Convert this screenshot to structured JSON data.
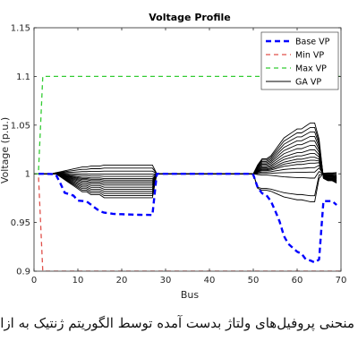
{
  "chart_data": {
    "type": "line",
    "title": "Voltage Profile",
    "xlabel": "Bus",
    "ylabel": "Voltage (p.u.)",
    "xlim": [
      0,
      70
    ],
    "ylim": [
      0.9,
      1.15
    ],
    "xticks": [
      0,
      10,
      20,
      30,
      40,
      50,
      60,
      70
    ],
    "yticks": [
      0.9,
      0.95,
      1,
      1.05,
      1.1,
      1.15
    ],
    "ytick_labels": [
      "0.9",
      "0.95",
      "1",
      "1.05",
      "1.1",
      "1.15"
    ],
    "grid": false,
    "legend_position": "top-right",
    "series": [
      {
        "name": "Base VP",
        "color": "#0000ff",
        "style": "dashed-thick",
        "x": [
          1,
          2,
          3,
          4,
          5,
          6,
          7,
          8,
          9,
          10,
          11,
          12,
          13,
          14,
          15,
          16,
          17,
          18,
          19,
          20,
          21,
          22,
          23,
          24,
          25,
          26,
          27,
          28,
          29,
          30,
          31,
          32,
          33,
          34,
          35,
          36,
          37,
          38,
          39,
          40,
          41,
          42,
          43,
          44,
          45,
          46,
          47,
          48,
          49,
          50,
          51,
          52,
          53,
          54,
          55,
          56,
          57,
          58,
          59,
          60,
          61,
          62,
          63,
          64,
          65,
          66,
          67,
          68,
          69
        ],
        "y": [
          1.0,
          1.0,
          0.9999,
          0.9998,
          0.999,
          0.9903,
          0.9805,
          0.9791,
          0.9776,
          0.9725,
          0.9721,
          0.9716,
          0.9683,
          0.9648,
          0.9616,
          0.9601,
          0.9596,
          0.9589,
          0.9586,
          0.9585,
          0.9583,
          0.9582,
          0.958,
          0.9579,
          0.9578,
          0.9578,
          0.9577,
          1.0,
          1.0,
          1.0,
          1.0,
          1.0,
          1.0,
          1.0,
          1.0,
          1.0,
          1.0,
          1.0,
          1.0,
          1.0,
          1.0,
          1.0,
          1.0,
          1.0,
          1.0,
          1.0,
          1.0,
          1.0,
          1.0,
          0.999,
          0.986,
          0.98,
          0.978,
          0.972,
          0.962,
          0.951,
          0.936,
          0.928,
          0.924,
          0.92,
          0.918,
          0.912,
          0.911,
          0.909,
          0.912,
          0.972,
          0.972,
          0.972,
          0.968
        ]
      },
      {
        "name": "Min VP",
        "color": "#e0504a",
        "style": "dashed",
        "x": [
          0,
          1,
          2,
          70
        ],
        "y": [
          1.0,
          1.0,
          0.9,
          0.9
        ]
      },
      {
        "name": "Max VP",
        "color": "#33cc33",
        "style": "dashed",
        "x": [
          0,
          1,
          2,
          70
        ],
        "y": [
          1.0,
          1.0,
          1.1,
          1.1
        ]
      },
      {
        "name": "GA VP",
        "color": "#000000",
        "style": "solid",
        "x": [
          1,
          2,
          3,
          4,
          5,
          6,
          7,
          8,
          9,
          10,
          11,
          12,
          13,
          14,
          15,
          16,
          17,
          18,
          19,
          20,
          21,
          22,
          23,
          24,
          25,
          26,
          27,
          28,
          29,
          30,
          31,
          32,
          33,
          34,
          35,
          36,
          37,
          38,
          39,
          40,
          41,
          42,
          43,
          44,
          45,
          46,
          47,
          48,
          49,
          50,
          51,
          52,
          53,
          54,
          55,
          56,
          57,
          58,
          59,
          60,
          61,
          62,
          63,
          64,
          65,
          66,
          67,
          68,
          69
        ],
        "y": [
          1.0,
          1.0,
          1.0,
          1.0,
          1.0,
          0.999,
          0.998,
          0.997,
          0.996,
          0.995,
          0.994,
          0.994,
          0.993,
          0.993,
          0.993,
          0.992,
          0.992,
          0.992,
          0.992,
          0.992,
          0.992,
          0.992,
          0.992,
          0.992,
          0.992,
          0.992,
          0.992,
          1.0,
          1.0,
          1.0,
          1.0,
          1.0,
          1.0,
          1.0,
          1.0,
          1.0,
          1.0,
          1.0,
          1.0,
          1.0,
          1.0,
          1.0,
          1.0,
          1.0,
          1.0,
          1.0,
          1.0,
          1.0,
          1.0,
          1.0,
          1.003,
          1.005,
          1.005,
          1.006,
          1.008,
          1.01,
          1.012,
          1.013,
          1.014,
          1.015,
          1.015,
          1.016,
          1.017,
          1.017,
          1.015,
          0.998,
          0.997,
          0.997,
          0.996
        ]
      }
    ]
  },
  "caption": "منحنی پروفیل‌های ولتاژ بدست آمده توسط الگوریتم ژنتیک به ازای"
}
